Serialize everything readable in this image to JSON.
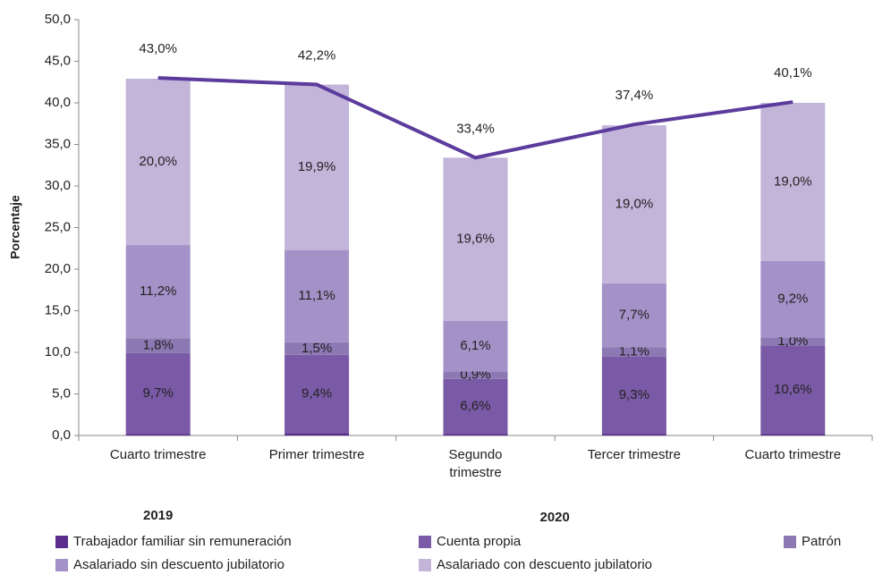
{
  "chart_data": {
    "type": "stacked_bar_line",
    "ylabel": "Porcentaje",
    "categories": [
      "Cuarto trimestre",
      "Primer trimestre",
      "Segundo trimestre",
      "Tercer trimestre",
      "Cuarto trimestre"
    ],
    "year_labels": [
      "2019",
      "2020"
    ],
    "ylim": [
      0,
      50
    ],
    "yticks": [
      {
        "value": 0,
        "label": "0,0"
      },
      {
        "value": 5,
        "label": "5,0"
      },
      {
        "value": 10,
        "label": "10,0"
      },
      {
        "value": 15,
        "label": "15,0"
      },
      {
        "value": 20,
        "label": "20,0"
      },
      {
        "value": 25,
        "label": "25,0"
      },
      {
        "value": 30,
        "label": "30,0"
      },
      {
        "value": 35,
        "label": "35,0"
      },
      {
        "value": 40,
        "label": "40,0"
      },
      {
        "value": 45,
        "label": "45,0"
      },
      {
        "value": 50,
        "label": "50,0"
      }
    ],
    "series": [
      {
        "name": "Trabajador familiar sin remuneración",
        "color": "#5a2d8c",
        "values": [
          0.2,
          0.3,
          0.2,
          0.2,
          0.2
        ]
      },
      {
        "name": "Cuenta propia",
        "color": "#7a5aa6",
        "values": [
          9.7,
          9.4,
          6.6,
          9.3,
          10.6
        ],
        "value_labels": [
          "9,7%",
          "9,4%",
          "6,6%",
          "9,3%",
          "10,6%"
        ]
      },
      {
        "name": "Patrón",
        "color": "#8c78b3",
        "values": [
          1.8,
          1.5,
          0.9,
          1.1,
          1.0
        ],
        "value_labels": [
          "1,8%",
          "1,5%",
          "0,9%",
          "1,1%",
          "1,0%"
        ]
      },
      {
        "name": "Asalariado sin descuento jubilatorio",
        "color": "#a391c7",
        "values": [
          11.2,
          11.1,
          6.1,
          7.7,
          9.2
        ],
        "value_labels": [
          "11,2%",
          "11,1%",
          "6,1%",
          "7,7%",
          "9,2%"
        ]
      },
      {
        "name": "Asalariado con descuento jubilatorio",
        "color": "#c3b5da",
        "values": [
          20.0,
          19.9,
          19.6,
          19.0,
          19.0
        ],
        "value_labels": [
          "20,0%",
          "19,9%",
          "19,6%",
          "19,0%",
          "19,0%"
        ]
      }
    ],
    "line": {
      "color": "#5b3b9c",
      "values": [
        43.0,
        42.2,
        33.4,
        37.4,
        40.1
      ],
      "value_labels": [
        "43,0%",
        "42,2%",
        "33,4%",
        "37,4%",
        "40,1%"
      ]
    }
  }
}
